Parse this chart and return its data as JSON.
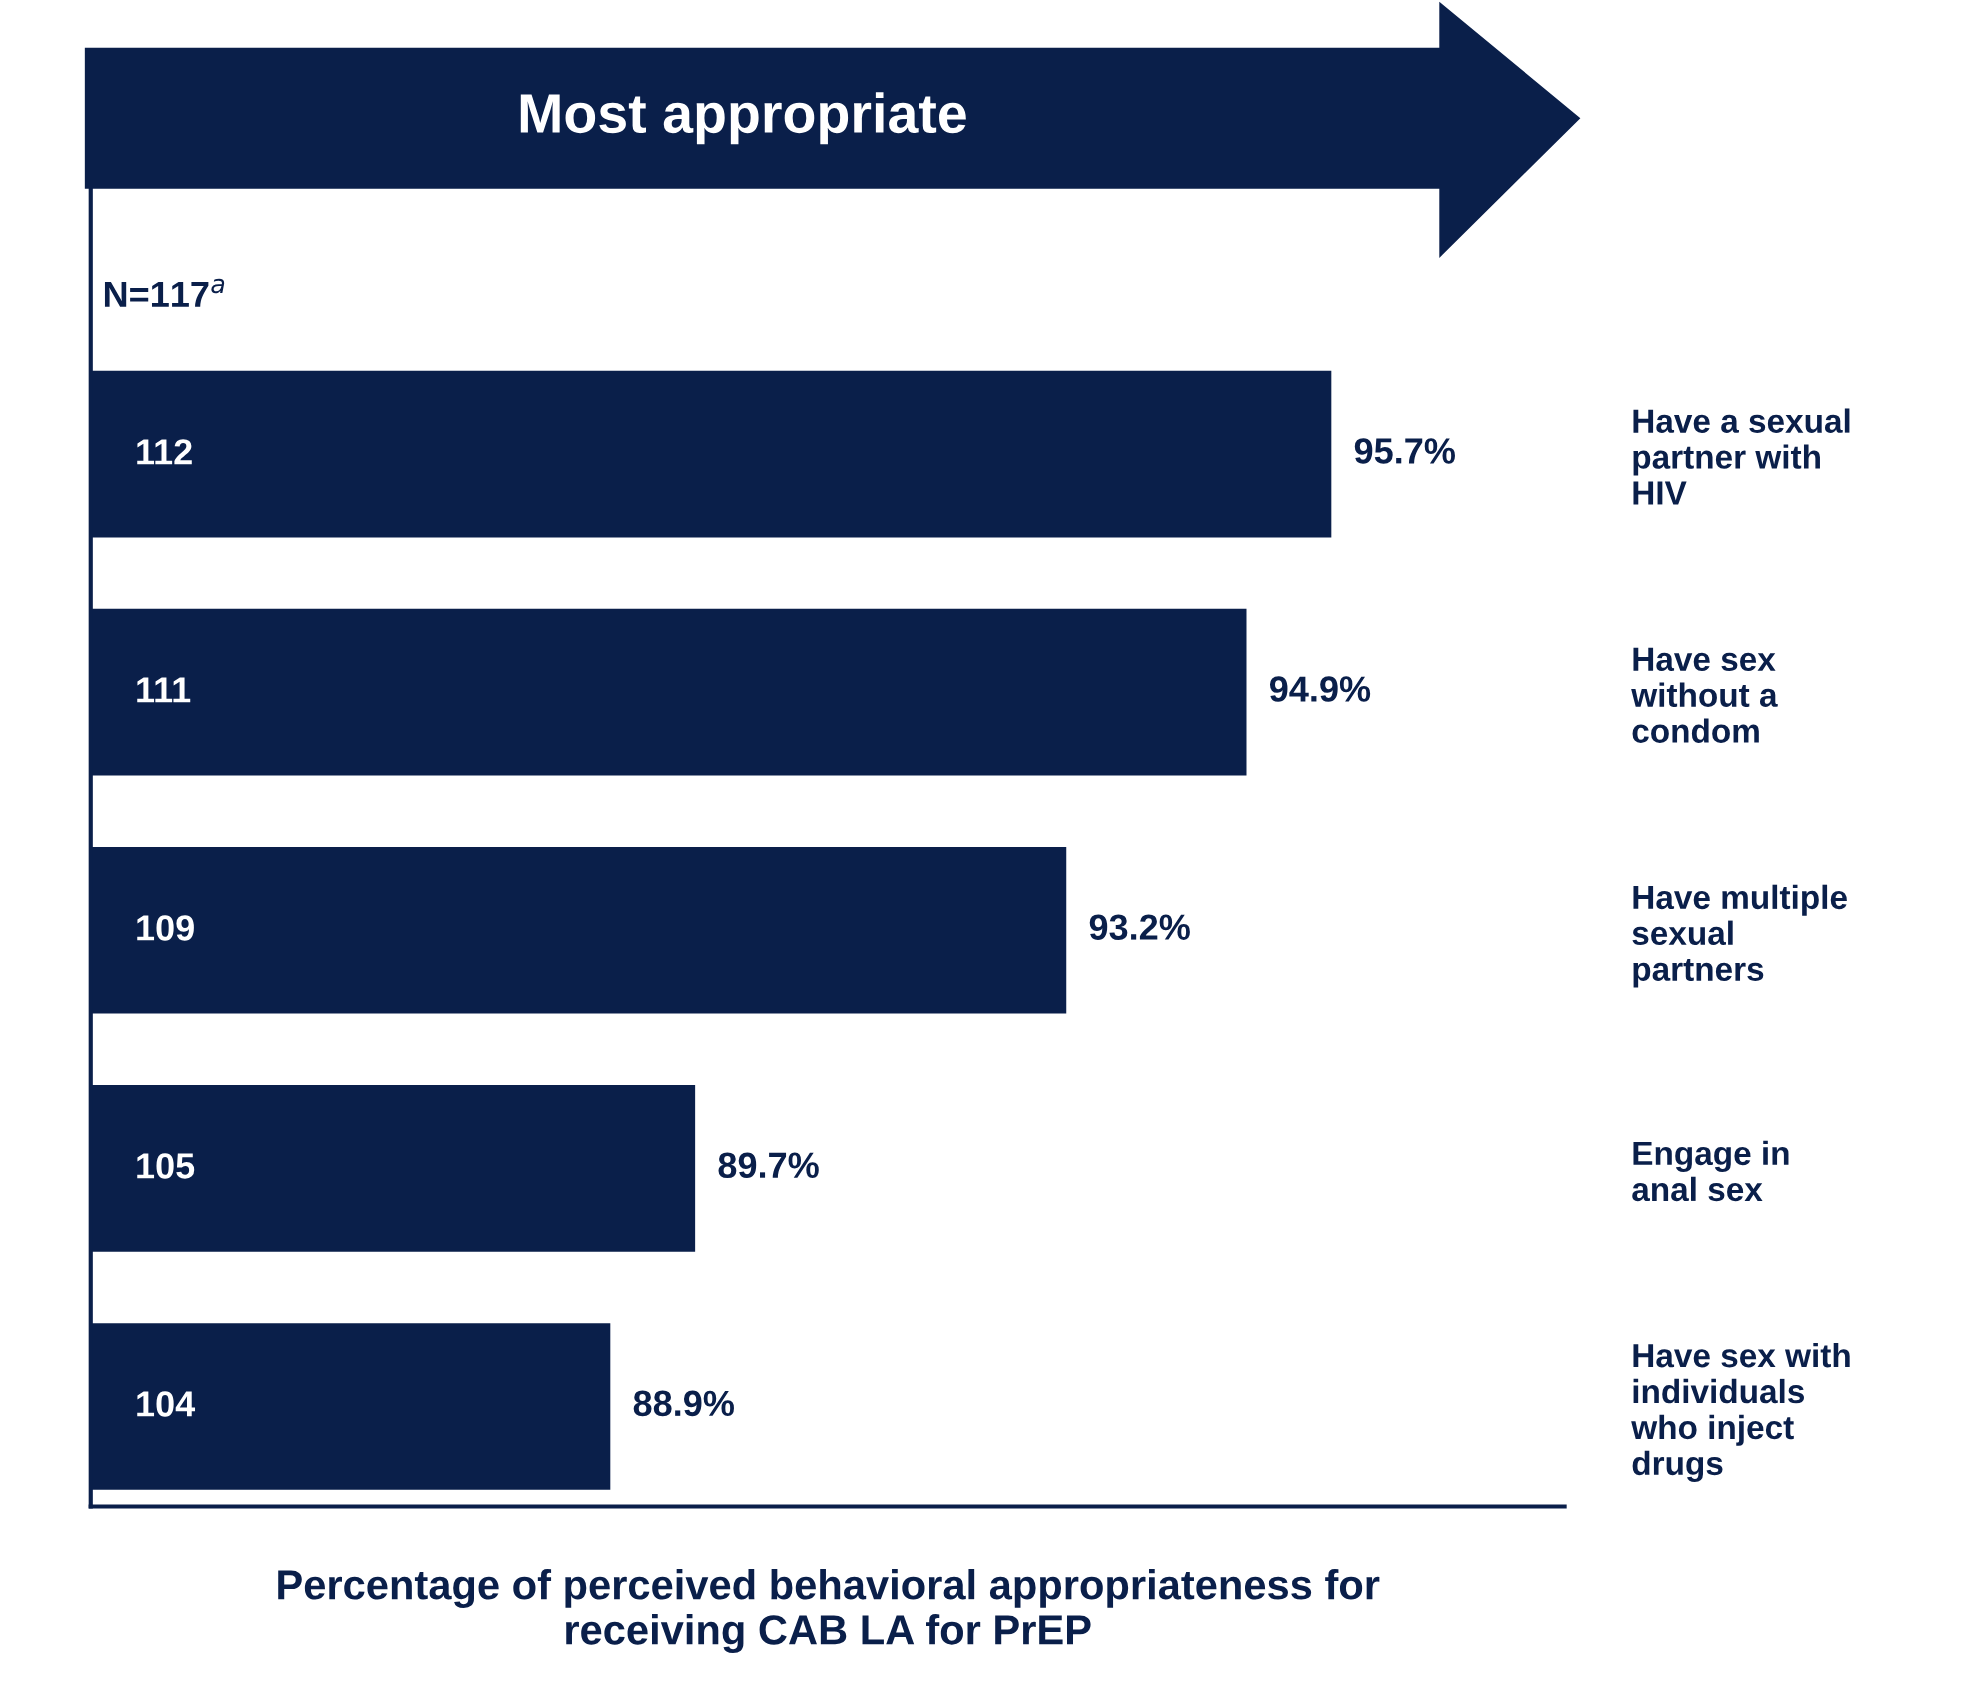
{
  "chart_data": {
    "type": "bar",
    "orientation": "horizontal",
    "title": "Most appropriate",
    "xlabel": "Percentage of perceived behavioral appropriateness for\nreceiving CAB LA for PrEP",
    "categories": [
      "Have a sexual\npartner with\nHIV",
      "Have sex\nwithout a\ncondom",
      "Have multiple\nsexual\npartners",
      "Engage in\nanal sex",
      "Have sex with\nindividuals\nwho inject\ndrugs"
    ],
    "values": [
      95.7,
      94.9,
      93.2,
      89.7,
      88.9
    ],
    "value_labels": [
      "95.7%",
      "94.9%",
      "93.2%",
      "89.7%",
      "88.9%"
    ],
    "color": "#0a1f4a",
    "xlim": [
      84,
      97.9
    ],
    "tick_labels": "y",
    "grid": false,
    "legend": false,
    "annotations": [
      "N=117$^{a}$",
      "112",
      "111",
      "109",
      "105",
      "104"
    ]
  }
}
